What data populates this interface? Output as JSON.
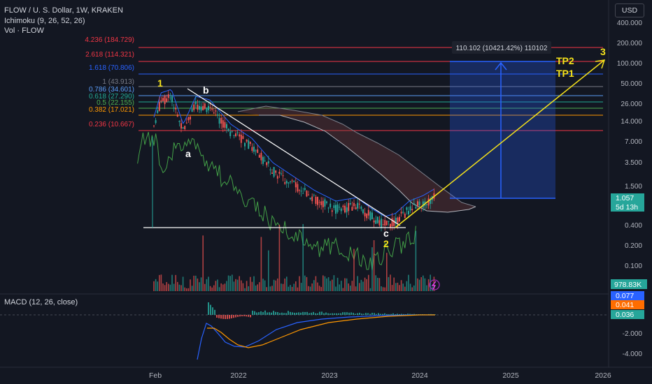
{
  "header": {
    "symbol_line": "FLOW / U. S. Dollar, 1W, KRAKEN",
    "ichimoku": "Ichimoku (9, 26, 52, 26)",
    "volume": "Vol · FLOW",
    "currency_button": "USD"
  },
  "price_axis": {
    "labels": [
      "400.000",
      "200.000",
      "100.000",
      "50.000",
      "26.000",
      "14.000",
      "7.000",
      "3.500",
      "1.500",
      "0.400",
      "0.200",
      "0.100"
    ],
    "current_price": "1.057",
    "countdown": "5d 13h",
    "volume_value": "978.83K"
  },
  "macd_axis": {
    "labels": [
      "-2.000",
      "-4.000"
    ],
    "value_1": "0.077",
    "value_2": "0.041",
    "value_3": "0.036",
    "legend": "MACD (12, 26, close)"
  },
  "time_axis": {
    "labels": [
      "Feb",
      "2022",
      "2023",
      "2024",
      "2025",
      "2026"
    ]
  },
  "fib_levels": [
    {
      "label": "4.236 (184.729)",
      "color": "#f23645"
    },
    {
      "label": "2.618 (114.321)",
      "color": "#f23645"
    },
    {
      "label": "1.618 (70.806)",
      "color": "#2962ff"
    },
    {
      "label": "1 (43.913)",
      "color": "#787b86"
    },
    {
      "label": "0.786 (34.601)",
      "color": "#5b9cf6"
    },
    {
      "label": "0.618 (27.290)",
      "color": "#22ab94"
    },
    {
      "label": "0.5 (22.155)",
      "color": "#4caf50"
    },
    {
      "label": "0.382 (17.021)",
      "color": "#ff9800"
    },
    {
      "label": "0.236 (10.667)",
      "color": "#f23645"
    }
  ],
  "annotations": {
    "wave_1": "1",
    "wave_a": "a",
    "wave_b": "b",
    "wave_c": "c",
    "wave_2": "2",
    "wave_3": "3",
    "tp1": "TP1",
    "tp2": "TP2",
    "measure": "110.102 (10421.42%) 110102"
  },
  "colors": {
    "background": "#131722",
    "bull": "#26a69a",
    "bear": "#ef5350",
    "accent": "#2962ff",
    "wave": "#f5e21b"
  }
}
